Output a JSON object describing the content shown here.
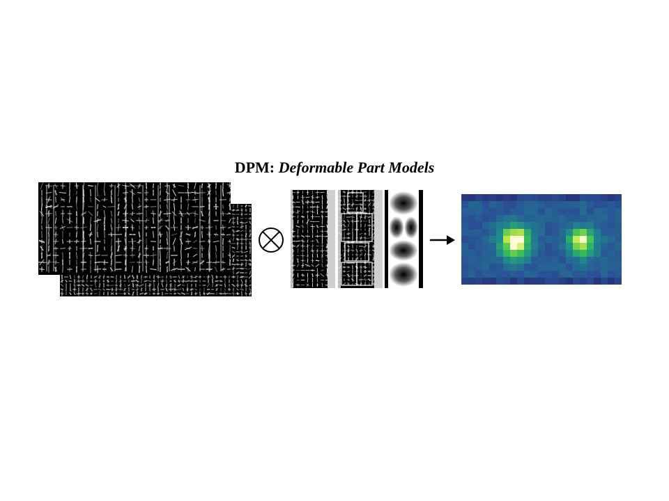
{
  "title": {
    "prefix": "DPM:",
    "emphasis": "Deformable Part Models"
  },
  "operator": {
    "symbol": "convolution-circle-times"
  },
  "colors": {
    "background": "#ffffff",
    "hog_background": "#000000",
    "hog_stroke": "#e8e8e8",
    "heatmap_low": "#2b1d6a",
    "heatmap_mid": "#2a8f8c",
    "heatmap_green": "#2fbf5a",
    "heatmap_high": "#fffbcf"
  }
}
